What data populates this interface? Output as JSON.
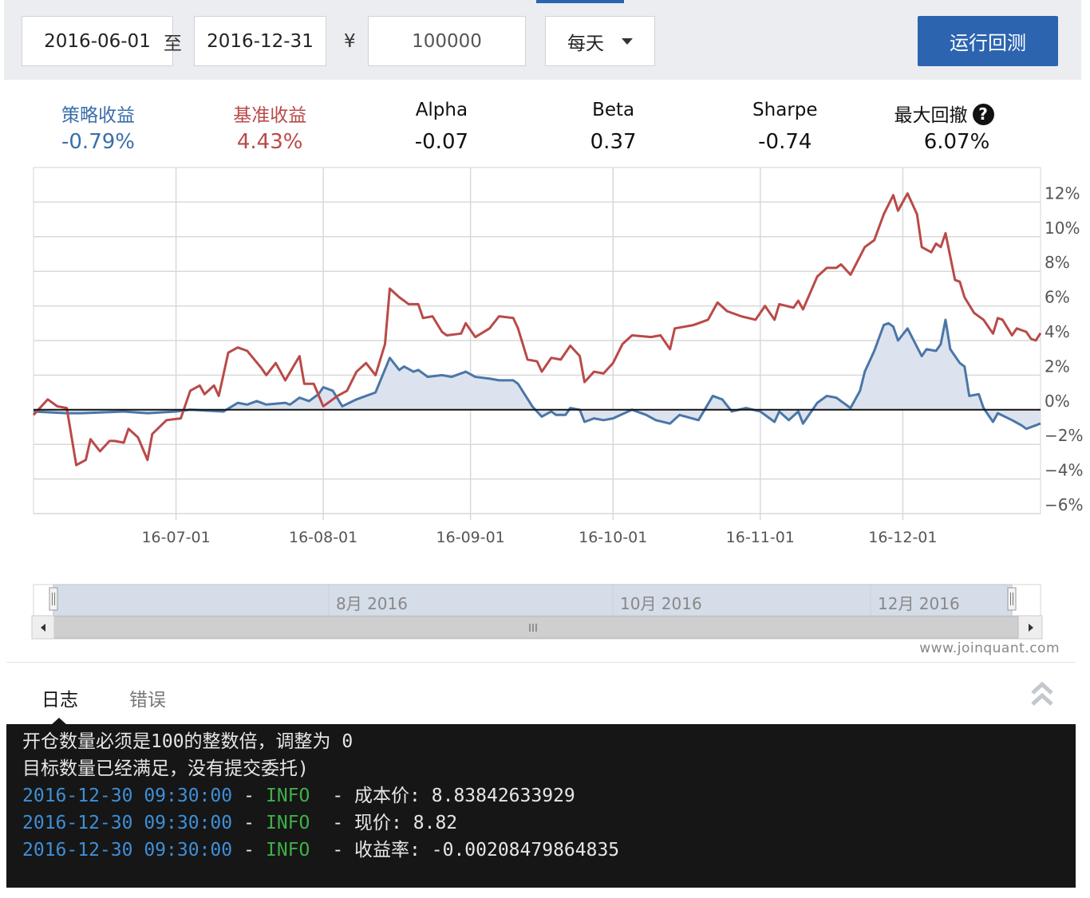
{
  "toolbar": {
    "start_date": "2016-06-01",
    "to": "至",
    "end_date": "2016-12-31",
    "currency": "¥",
    "capital": "100000",
    "frequency": "每天",
    "run_button": "运行回测"
  },
  "metrics": [
    {
      "label": "策略收益",
      "value": "-0.79%"
    },
    {
      "label": "基准收益",
      "value": "4.43%"
    },
    {
      "label": "Alpha",
      "value": "-0.07"
    },
    {
      "label": "Beta",
      "value": "0.37"
    },
    {
      "label": "Sharpe",
      "value": "-0.74"
    },
    {
      "label": "最大回撤",
      "value": "6.07%"
    }
  ],
  "help_icon": "?",
  "chart_data": {
    "type": "line",
    "xlim": [
      "2016-06-01",
      "2016-12-30"
    ],
    "xticks": [
      {
        "value": "2016-07-01",
        "label": "16-07-01"
      },
      {
        "value": "2016-08-01",
        "label": "16-08-01"
      },
      {
        "value": "2016-09-01",
        "label": "16-09-01"
      },
      {
        "value": "2016-10-01",
        "label": "16-10-01"
      },
      {
        "value": "2016-11-01",
        "label": "16-11-01"
      },
      {
        "value": "2016-12-01",
        "label": "16-12-01"
      }
    ],
    "ylim": [
      -6,
      14
    ],
    "yticks": [
      {
        "value": 12,
        "label": "12%"
      },
      {
        "value": 10,
        "label": "10%"
      },
      {
        "value": 8,
        "label": "8%"
      },
      {
        "value": 6,
        "label": "6%"
      },
      {
        "value": 4,
        "label": "4%"
      },
      {
        "value": 2,
        "label": "2%"
      },
      {
        "value": 0,
        "label": "0%"
      },
      {
        "value": -2,
        "label": "−2%"
      },
      {
        "value": -4,
        "label": "−4%"
      },
      {
        "value": -6,
        "label": "−6%"
      }
    ],
    "grid": true,
    "series": [
      {
        "color": "#b94a48",
        "x": [
          "2016-06-01",
          "2016-06-04",
          "2016-06-06",
          "2016-06-08",
          "2016-06-10",
          "2016-06-12",
          "2016-06-13",
          "2016-06-15",
          "2016-06-17",
          "2016-06-18",
          "2016-06-20",
          "2016-06-21",
          "2016-06-23",
          "2016-06-25",
          "2016-06-26",
          "2016-06-29",
          "2016-07-02",
          "2016-07-04",
          "2016-07-06",
          "2016-07-07",
          "2016-07-09",
          "2016-07-10",
          "2016-07-12",
          "2016-07-14",
          "2016-07-16",
          "2016-07-19",
          "2016-07-20",
          "2016-07-22",
          "2016-07-24",
          "2016-07-27",
          "2016-07-28",
          "2016-07-30",
          "2016-08-01",
          "2016-08-04",
          "2016-08-06",
          "2016-08-08",
          "2016-08-10",
          "2016-08-12",
          "2016-08-14",
          "2016-08-15",
          "2016-08-17",
          "2016-08-19",
          "2016-08-21",
          "2016-08-22",
          "2016-08-24",
          "2016-08-26",
          "2016-08-27",
          "2016-08-30",
          "2016-08-31",
          "2016-09-02",
          "2016-09-05",
          "2016-09-07",
          "2016-09-10",
          "2016-09-11",
          "2016-09-13",
          "2016-09-15",
          "2016-09-16",
          "2016-09-18",
          "2016-09-20",
          "2016-09-22",
          "2016-09-24",
          "2016-09-25",
          "2016-09-27",
          "2016-09-29",
          "2016-10-01",
          "2016-10-03",
          "2016-10-05",
          "2016-10-09",
          "2016-10-11",
          "2016-10-13",
          "2016-10-14",
          "2016-10-18",
          "2016-10-21",
          "2016-10-23",
          "2016-10-25",
          "2016-10-28",
          "2016-10-31",
          "2016-11-02",
          "2016-11-04",
          "2016-11-05",
          "2016-11-08",
          "2016-11-09",
          "2016-11-10",
          "2016-11-13",
          "2016-11-15",
          "2016-11-17",
          "2016-11-18",
          "2016-11-20",
          "2016-11-23",
          "2016-11-25",
          "2016-11-27",
          "2016-11-29",
          "2016-11-30",
          "2016-12-02",
          "2016-12-04",
          "2016-12-05",
          "2016-12-07",
          "2016-12-08",
          "2016-12-09",
          "2016-12-10",
          "2016-12-12",
          "2016-12-13",
          "2016-12-14",
          "2016-12-16",
          "2016-12-18",
          "2016-12-20",
          "2016-12-21",
          "2016-12-22",
          "2016-12-24",
          "2016-12-25",
          "2016-12-27",
          "2016-12-28",
          "2016-12-29",
          "2016-12-30"
        ],
        "values": [
          -0.3,
          0.6,
          0.2,
          0.1,
          -3.2,
          -2.9,
          -1.7,
          -2.4,
          -1.8,
          -1.8,
          -1.9,
          -1.1,
          -1.6,
          -2.9,
          -1.4,
          -0.6,
          -0.5,
          1.1,
          1.4,
          0.9,
          1.4,
          0.8,
          3.3,
          3.6,
          3.4,
          2.4,
          2.0,
          2.7,
          1.7,
          3.1,
          1.5,
          1.5,
          0.2,
          0.8,
          1.1,
          2.2,
          2.7,
          2.0,
          3.8,
          7.0,
          6.5,
          6.1,
          6.1,
          5.3,
          5.4,
          4.5,
          4.3,
          4.4,
          5.0,
          4.2,
          4.7,
          5.4,
          5.3,
          4.7,
          2.9,
          2.8,
          2.2,
          3.0,
          2.9,
          3.7,
          3.1,
          1.6,
          2.2,
          2.1,
          2.7,
          3.8,
          4.3,
          4.2,
          4.3,
          3.5,
          4.7,
          4.9,
          5.2,
          6.2,
          5.7,
          5.4,
          5.2,
          6.0,
          5.2,
          6.1,
          5.9,
          6.3,
          5.8,
          7.7,
          8.2,
          8.2,
          8.4,
          7.8,
          9.4,
          9.8,
          11.3,
          12.4,
          11.5,
          12.5,
          11.3,
          9.4,
          9.1,
          9.6,
          9.4,
          10.2,
          7.5,
          7.4,
          6.5,
          5.6,
          5.2,
          4.4,
          5.3,
          5.2,
          4.3,
          4.7,
          4.5,
          4.1,
          4.0,
          4.43
        ]
      },
      {
        "color": "#4a76a8",
        "fill": "#dde3ee",
        "x": [
          "2016-06-01",
          "2016-06-08",
          "2016-06-11",
          "2016-06-20",
          "2016-06-25",
          "2016-07-01",
          "2016-07-04",
          "2016-07-11",
          "2016-07-14",
          "2016-07-16",
          "2016-07-18",
          "2016-07-20",
          "2016-07-24",
          "2016-07-25",
          "2016-07-27",
          "2016-07-29",
          "2016-07-31",
          "2016-08-01",
          "2016-08-03",
          "2016-08-05",
          "2016-08-08",
          "2016-08-10",
          "2016-08-12",
          "2016-08-15",
          "2016-08-17",
          "2016-08-18",
          "2016-08-20",
          "2016-08-21",
          "2016-08-23",
          "2016-08-26",
          "2016-08-28",
          "2016-08-31",
          "2016-09-02",
          "2016-09-05",
          "2016-09-07",
          "2016-09-10",
          "2016-09-11",
          "2016-09-14",
          "2016-09-16",
          "2016-09-18",
          "2016-09-19",
          "2016-09-21",
          "2016-09-22",
          "2016-09-24",
          "2016-09-25",
          "2016-09-27",
          "2016-09-29",
          "2016-10-01",
          "2016-10-05",
          "2016-10-08",
          "2016-10-10",
          "2016-10-13",
          "2016-10-15",
          "2016-10-19",
          "2016-10-22",
          "2016-10-24",
          "2016-10-26",
          "2016-10-29",
          "2016-11-01",
          "2016-11-04",
          "2016-11-05",
          "2016-11-07",
          "2016-11-09",
          "2016-11-10",
          "2016-11-13",
          "2016-11-15",
          "2016-11-17",
          "2016-11-20",
          "2016-11-22",
          "2016-11-23",
          "2016-11-25",
          "2016-11-27",
          "2016-11-28",
          "2016-11-29",
          "2016-11-30",
          "2016-12-02",
          "2016-12-05",
          "2016-12-06",
          "2016-12-08",
          "2016-12-09",
          "2016-12-10",
          "2016-12-11",
          "2016-12-13",
          "2016-12-14",
          "2016-12-15",
          "2016-12-17",
          "2016-12-18",
          "2016-12-20",
          "2016-12-21",
          "2016-12-24",
          "2016-12-26",
          "2016-12-27",
          "2016-12-29",
          "2016-12-30"
        ],
        "values": [
          -0.1,
          -0.2,
          -0.2,
          -0.1,
          -0.2,
          -0.1,
          0,
          -0.1,
          0.4,
          0.3,
          0.5,
          0.3,
          0.4,
          0.3,
          0.7,
          0.5,
          0.9,
          1.3,
          1.1,
          0.2,
          0.6,
          0.8,
          1.0,
          3.0,
          2.3,
          2.5,
          2.2,
          2.3,
          1.9,
          2.0,
          1.9,
          2.2,
          1.9,
          1.8,
          1.7,
          1.7,
          1.5,
          0.2,
          -0.4,
          -0.1,
          -0.3,
          -0.3,
          0.1,
          0,
          -0.7,
          -0.5,
          -0.6,
          -0.5,
          0,
          -0.3,
          -0.6,
          -0.8,
          -0.3,
          -0.6,
          0.8,
          0.6,
          -0.1,
          0.1,
          -0.1,
          -0.7,
          -0.1,
          -0.6,
          -0.1,
          -0.8,
          0.4,
          0.8,
          0.7,
          0.1,
          1.1,
          2.2,
          3.4,
          4.9,
          5.0,
          4.8,
          4.0,
          4.7,
          3.1,
          3.5,
          3.4,
          3.8,
          5.2,
          3.5,
          2.7,
          2.5,
          0.8,
          0.9,
          0.1,
          -0.7,
          -0.2,
          -0.6,
          -0.9,
          -1.1,
          -0.9,
          -0.79
        ]
      }
    ]
  },
  "navigator": {
    "labels": [
      "8月 2016",
      "10月 2016",
      "12月 2016"
    ]
  },
  "credit": "www.joinquant.com",
  "tabs": [
    "日志",
    "错误"
  ],
  "log": {
    "plain": [
      "开仓数量必须是100的整数倍，调整为 0",
      "目标数量已经满足，没有提交委托)"
    ],
    "entries": [
      {
        "time": "2016-12-30 09:30:00",
        "separator": "-",
        "level": "INFO",
        "message": "- 成本价: 8.83842633929"
      },
      {
        "time": "2016-12-30 09:30:00",
        "separator": "-",
        "level": "INFO",
        "message": "- 现价: 8.82"
      },
      {
        "time": "2016-12-30 09:30:00",
        "separator": "-",
        "level": "INFO",
        "message": "- 收益率: -0.00208479864835"
      }
    ]
  }
}
